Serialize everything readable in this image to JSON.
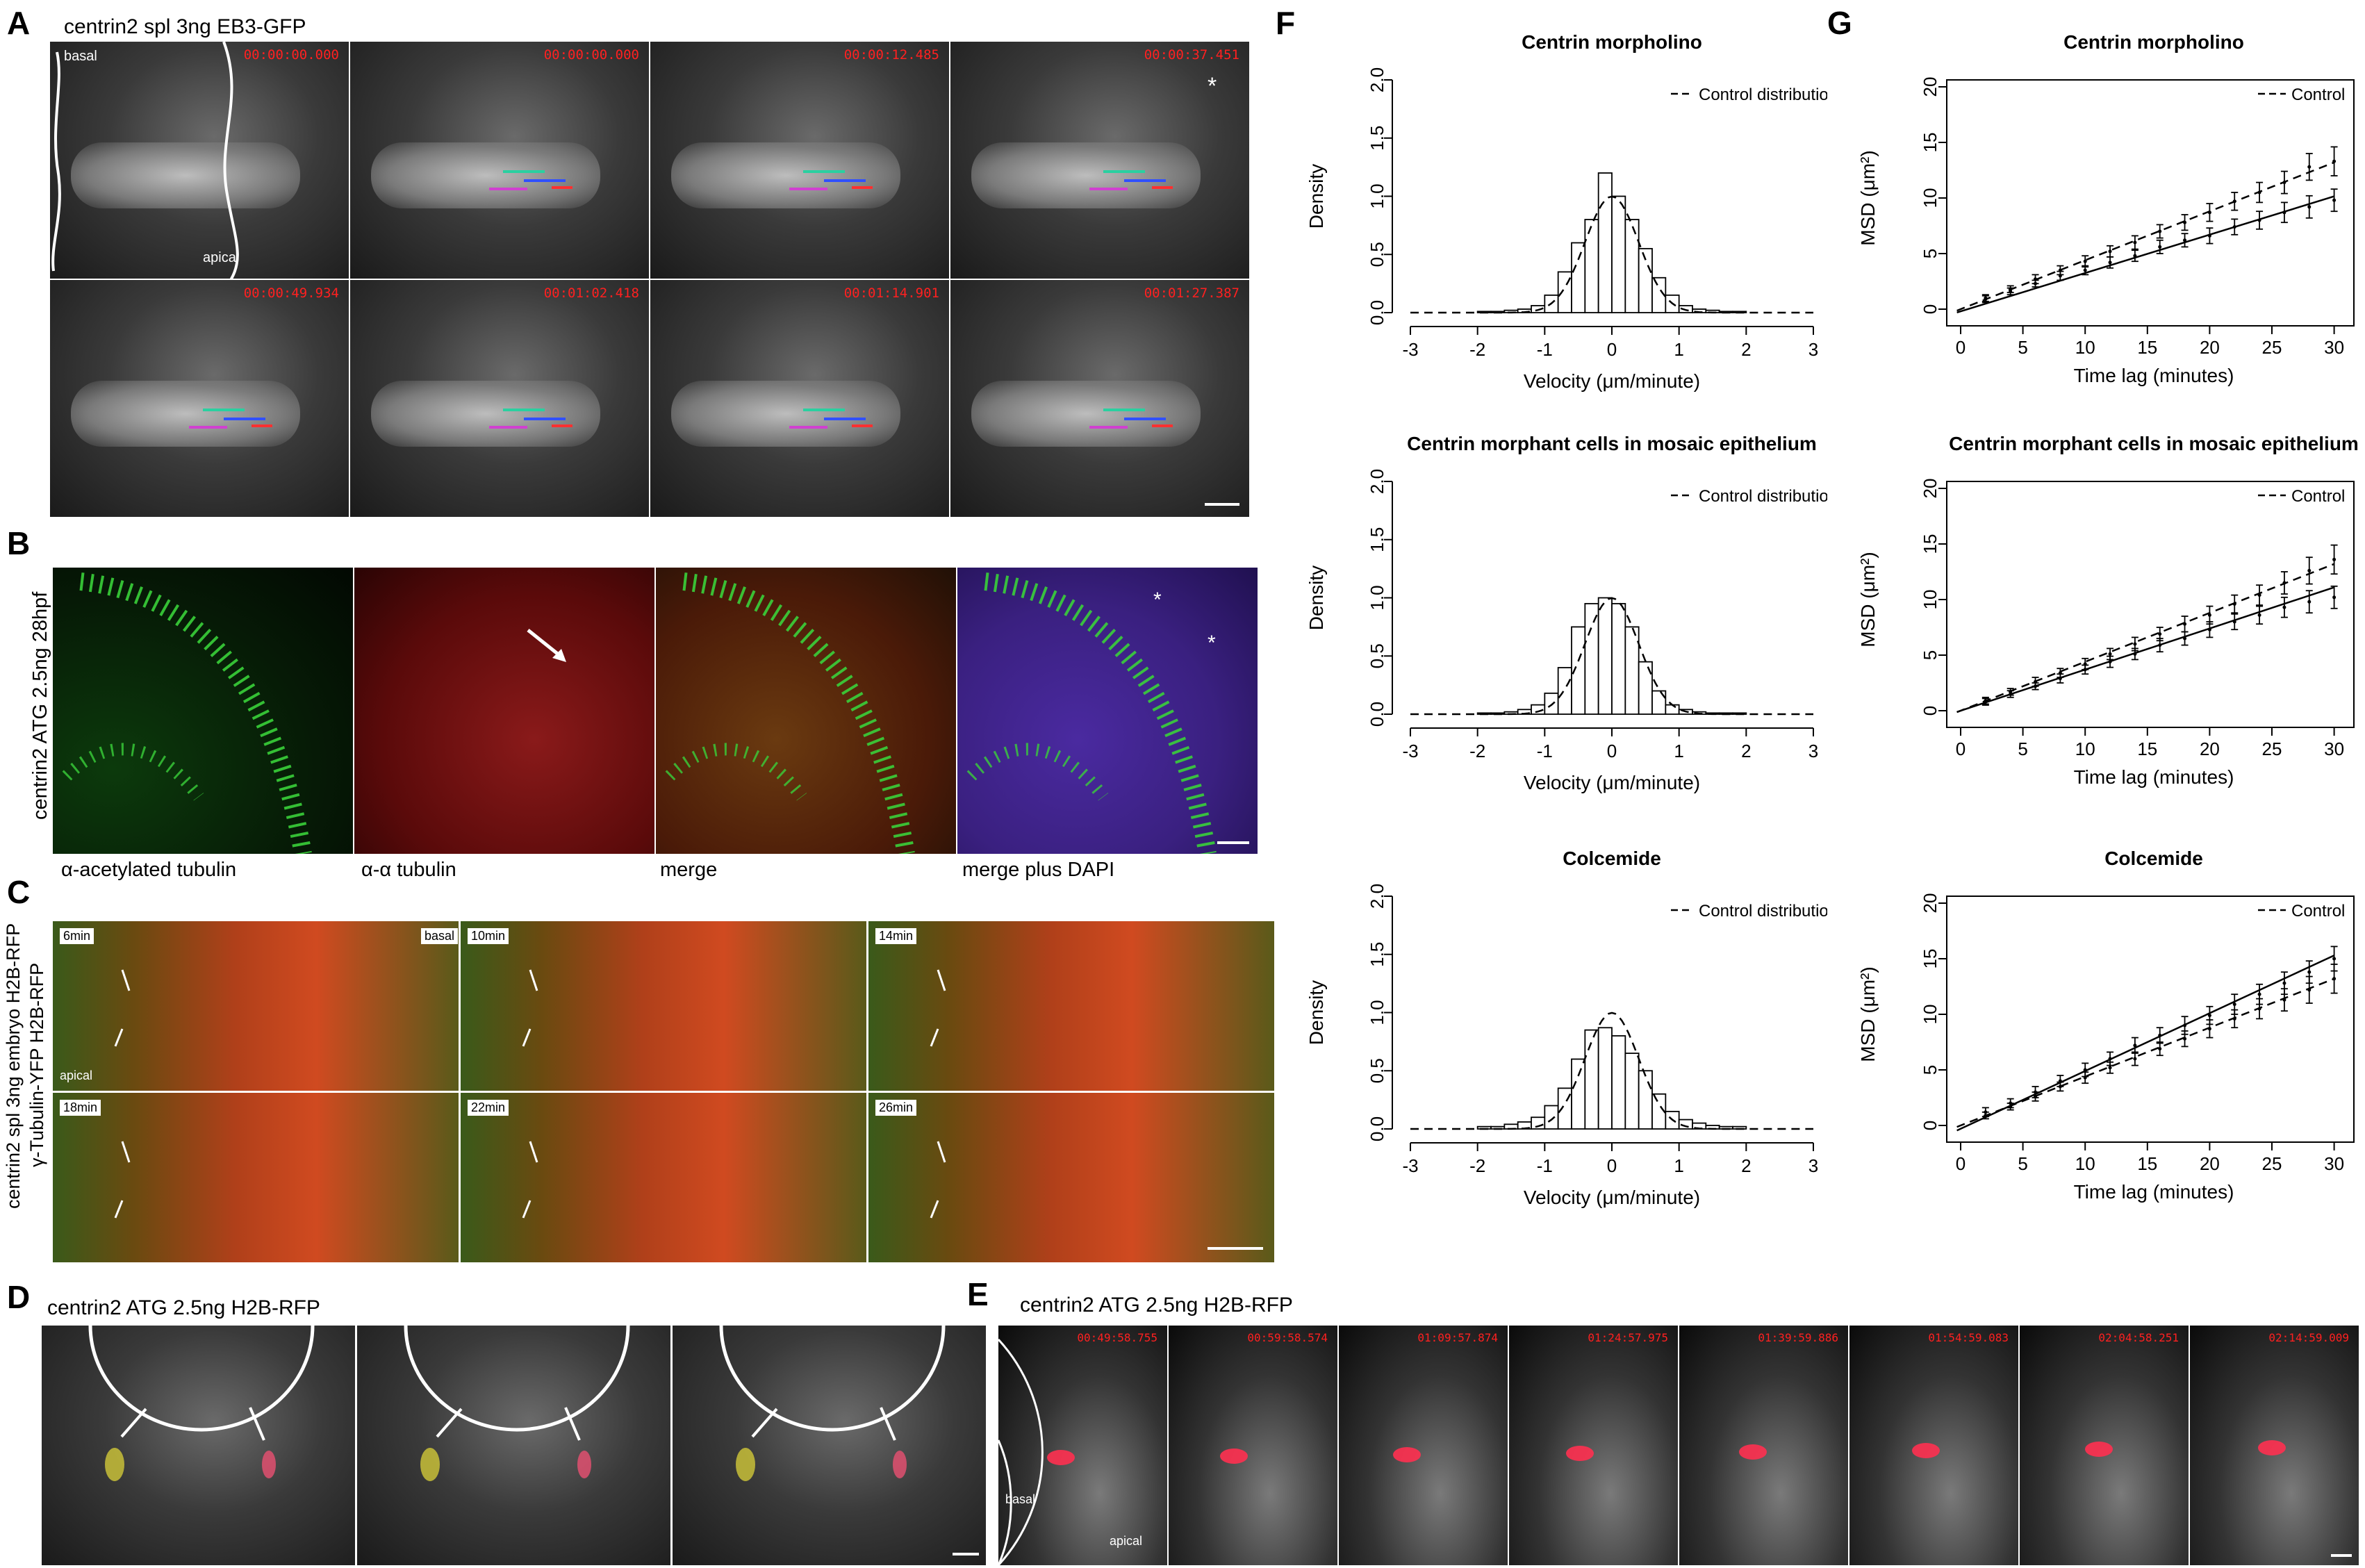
{
  "panels": {
    "A": {
      "label": "A",
      "title": "centrin2 spl 3ng  EB3-GFP",
      "basal": "basal",
      "apical": "apical",
      "asterisk": "*",
      "timestamps": [
        "00:00:00.000",
        "00:00:00.000",
        "00:00:12.485",
        "00:00:37.451",
        "00:00:49.934",
        "00:01:02.418",
        "00:01:14.901",
        "00:01:27.387"
      ]
    },
    "B": {
      "label": "B",
      "side": "centrin2 ATG 2.5ng  28hpf",
      "asterisk": "*",
      "captions": [
        "α-acetylated tubulin",
        "α-α tubulin",
        "merge",
        "merge plus DAPI"
      ]
    },
    "C": {
      "label": "C",
      "side1": "centrin2 spl 3ng embryo H2B-RFP",
      "side2": "γ-Tubulin-YFP H2B-RFP",
      "times": [
        "6min",
        "10min",
        "14min",
        "18min",
        "22min",
        "26min"
      ],
      "basal": "basal",
      "apical": "apical"
    },
    "D": {
      "label": "D",
      "title": "centrin2 ATG 2.5ng  H2B-RFP"
    },
    "E": {
      "label": "E",
      "title": "centrin2 ATG 2.5ng  H2B-RFP",
      "basal": "basal",
      "apical": "apical",
      "timestamps": [
        "00:49:58.755",
        "00:59:58.574",
        "01:09:57.874",
        "01:24:57.975",
        "01:39:59.886",
        "01:54:59.083",
        "02:04:58.251",
        "02:14:59.009"
      ]
    },
    "F": {
      "label": "F"
    },
    "G": {
      "label": "G"
    }
  },
  "chart_data": [
    {
      "type": "bar",
      "panel": "F",
      "title": "Centrin morpholino",
      "xlabel": "Velocity (μm/minute)",
      "ylabel": "Density",
      "xlim": [
        -3,
        3
      ],
      "ylim": [
        0,
        2.0
      ],
      "xticks": [
        -3,
        -2,
        -1,
        0,
        1,
        2,
        3
      ],
      "yticks": [
        "0.0",
        "0.5",
        "1.0",
        "1.5",
        "2.0"
      ],
      "legend": "Control distribution",
      "legend_position": "top-right",
      "bin_width": 0.2,
      "bin_starts": [
        -2.0,
        -1.8,
        -1.6,
        -1.4,
        -1.2,
        -1.0,
        -0.8,
        -0.6,
        -0.4,
        -0.2,
        0.0,
        0.2,
        0.4,
        0.6,
        0.8,
        1.0,
        1.2,
        1.4,
        1.6,
        1.8
      ],
      "values": [
        0.01,
        0.01,
        0.02,
        0.03,
        0.06,
        0.15,
        0.35,
        0.6,
        0.8,
        1.2,
        1.0,
        0.8,
        0.55,
        0.3,
        0.15,
        0.06,
        0.03,
        0.02,
        0.01,
        0.01
      ],
      "control_curve": {
        "mean": 0,
        "sd": 0.4
      }
    },
    {
      "type": "bar",
      "panel": "F",
      "title": "Centrin morphant cells in mosaic epithelium",
      "xlabel": "Velocity (μm/minute)",
      "ylabel": "Density",
      "xlim": [
        -3,
        3
      ],
      "ylim": [
        0,
        2.0
      ],
      "xticks": [
        -3,
        -2,
        -1,
        0,
        1,
        2,
        3
      ],
      "yticks": [
        "0.0",
        "0.5",
        "1.0",
        "1.5",
        "2.0"
      ],
      "legend": "Control distribution",
      "legend_position": "top-right",
      "bin_width": 0.2,
      "bin_starts": [
        -2.0,
        -1.8,
        -1.6,
        -1.4,
        -1.2,
        -1.0,
        -0.8,
        -0.6,
        -0.4,
        -0.2,
        0.0,
        0.2,
        0.4,
        0.6,
        0.8,
        1.0,
        1.2,
        1.4,
        1.6,
        1.8
      ],
      "values": [
        0.01,
        0.01,
        0.02,
        0.04,
        0.08,
        0.18,
        0.4,
        0.75,
        0.95,
        1.0,
        0.95,
        0.75,
        0.45,
        0.2,
        0.08,
        0.04,
        0.02,
        0.01,
        0.01,
        0.01
      ],
      "control_curve": {
        "mean": 0,
        "sd": 0.4
      }
    },
    {
      "type": "bar",
      "panel": "F",
      "title": "Colcemide",
      "xlabel": "Velocity (μm/minute)",
      "ylabel": "Density",
      "xlim": [
        -3,
        3
      ],
      "ylim": [
        0,
        2.0
      ],
      "xticks": [
        -3,
        -2,
        -1,
        0,
        1,
        2,
        3
      ],
      "yticks": [
        "0.0",
        "0.5",
        "1.0",
        "1.5",
        "2.0"
      ],
      "legend": "Control distribution",
      "legend_position": "top-right",
      "bin_width": 0.2,
      "bin_starts": [
        -2.0,
        -1.8,
        -1.6,
        -1.4,
        -1.2,
        -1.0,
        -0.8,
        -0.6,
        -0.4,
        -0.2,
        0.0,
        0.2,
        0.4,
        0.6,
        0.8,
        1.0,
        1.2,
        1.4,
        1.6,
        1.8
      ],
      "values": [
        0.02,
        0.02,
        0.04,
        0.06,
        0.1,
        0.2,
        0.35,
        0.6,
        0.85,
        0.87,
        0.8,
        0.65,
        0.5,
        0.3,
        0.15,
        0.08,
        0.05,
        0.03,
        0.02,
        0.02
      ],
      "control_curve": {
        "mean": 0,
        "sd": 0.4
      }
    },
    {
      "type": "line",
      "panel": "G",
      "title": "Centrin morpholino",
      "xlabel": "Time lag (minutes)",
      "ylabel": "MSD (μm²)",
      "xlim": [
        0,
        30
      ],
      "ylim": [
        0,
        20
      ],
      "xticks": [
        0,
        5,
        10,
        15,
        20,
        25,
        30
      ],
      "yticks": [
        0,
        5,
        10,
        15,
        20
      ],
      "legend": "Control",
      "legend_position": "top-right",
      "series": [
        {
          "style": "solid",
          "fit": [
            -0.2,
            0.345
          ],
          "x": [
            2,
            4,
            6,
            8,
            10,
            12,
            14,
            16,
            18,
            20,
            22,
            24,
            26,
            28,
            30
          ],
          "y": [
            0.9,
            1.6,
            2.3,
            3.0,
            3.5,
            4.2,
            4.8,
            5.6,
            6.2,
            6.6,
            7.4,
            8.0,
            8.7,
            9.2,
            9.8
          ],
          "err": [
            0.3,
            0.3,
            0.3,
            0.4,
            0.4,
            0.5,
            0.5,
            0.6,
            0.6,
            0.7,
            0.7,
            0.8,
            0.9,
            1.0,
            1.0
          ]
        },
        {
          "name": "Control",
          "style": "dashed",
          "fit": [
            0,
            0.44
          ],
          "x": [
            2,
            4,
            6,
            8,
            10,
            12,
            14,
            16,
            18,
            20,
            22,
            24,
            26,
            28,
            30
          ],
          "y": [
            1.0,
            1.8,
            2.7,
            3.5,
            4.3,
            5.2,
            6.0,
            7.0,
            7.8,
            8.7,
            9.7,
            10.5,
            11.4,
            12.8,
            13.3
          ],
          "err": [
            0.3,
            0.3,
            0.4,
            0.4,
            0.5,
            0.5,
            0.6,
            0.6,
            0.7,
            0.8,
            0.8,
            0.9,
            1.0,
            1.2,
            1.3
          ]
        }
      ]
    },
    {
      "type": "line",
      "panel": "G",
      "title": "Centrin morphant cells in mosaic epithelium",
      "xlabel": "Time lag (minutes)",
      "ylabel": "MSD (μm²)",
      "xlim": [
        0,
        30
      ],
      "ylim": [
        0,
        20
      ],
      "xticks": [
        0,
        5,
        10,
        15,
        20,
        25,
        30
      ],
      "yticks": [
        0,
        5,
        10,
        15,
        20
      ],
      "legend": "Control",
      "legend_position": "top-right",
      "series": [
        {
          "style": "solid",
          "fit": [
            0,
            0.37
          ],
          "x": [
            2,
            4,
            6,
            8,
            10,
            12,
            14,
            16,
            18,
            20,
            22,
            24,
            26,
            28,
            30
          ],
          "y": [
            0.8,
            1.5,
            2.2,
            2.9,
            3.7,
            4.4,
            5.1,
            5.9,
            6.5,
            7.3,
            8.0,
            8.6,
            9.3,
            9.8,
            10.2
          ],
          "err": [
            0.3,
            0.3,
            0.3,
            0.4,
            0.4,
            0.5,
            0.5,
            0.6,
            0.6,
            0.7,
            0.7,
            0.8,
            0.9,
            1.0,
            1.0
          ]
        },
        {
          "name": "Control",
          "style": "dashed",
          "fit": [
            0,
            0.44
          ],
          "x": [
            2,
            4,
            6,
            8,
            10,
            12,
            14,
            16,
            18,
            20,
            22,
            24,
            26,
            28,
            30
          ],
          "y": [
            0.9,
            1.7,
            2.6,
            3.4,
            4.2,
            5.1,
            6.0,
            6.9,
            7.8,
            8.6,
            9.6,
            10.4,
            11.5,
            12.6,
            13.6
          ],
          "err": [
            0.3,
            0.3,
            0.4,
            0.4,
            0.5,
            0.5,
            0.6,
            0.6,
            0.7,
            0.8,
            0.8,
            0.9,
            1.0,
            1.2,
            1.3
          ]
        }
      ]
    },
    {
      "type": "line",
      "panel": "G",
      "title": "Colcemide",
      "xlabel": "Time lag (minutes)",
      "ylabel": "MSD (μm²)",
      "xlim": [
        0,
        30
      ],
      "ylim": [
        0,
        20
      ],
      "xticks": [
        0,
        5,
        10,
        15,
        20,
        25,
        30
      ],
      "yticks": [
        0,
        5,
        10,
        15,
        20
      ],
      "legend": "Control",
      "legend_position": "top-right",
      "series": [
        {
          "style": "solid",
          "fit": [
            -0.3,
            0.52
          ],
          "x": [
            2,
            4,
            6,
            8,
            10,
            12,
            14,
            16,
            18,
            20,
            22,
            24,
            26,
            28,
            30
          ],
          "y": [
            1.2,
            2.0,
            3.0,
            4.0,
            5.0,
            6.0,
            7.2,
            8.1,
            9.0,
            9.9,
            10.9,
            11.8,
            12.8,
            13.8,
            15.0
          ],
          "err": [
            0.4,
            0.4,
            0.5,
            0.5,
            0.6,
            0.6,
            0.7,
            0.7,
            0.8,
            0.8,
            0.9,
            0.9,
            1.0,
            1.0,
            1.1
          ]
        },
        {
          "name": "Control",
          "style": "dashed",
          "fit": [
            0,
            0.44
          ],
          "x": [
            2,
            4,
            6,
            8,
            10,
            12,
            14,
            16,
            18,
            20,
            22,
            24,
            26,
            28,
            30
          ],
          "y": [
            0.9,
            1.7,
            2.6,
            3.5,
            4.3,
            5.2,
            6.0,
            6.9,
            7.8,
            8.7,
            9.6,
            10.5,
            11.3,
            12.2,
            13.2
          ],
          "err": [
            0.3,
            0.3,
            0.4,
            0.4,
            0.5,
            0.5,
            0.6,
            0.6,
            0.7,
            0.8,
            0.8,
            0.9,
            1.0,
            1.2,
            1.3
          ]
        }
      ]
    }
  ]
}
